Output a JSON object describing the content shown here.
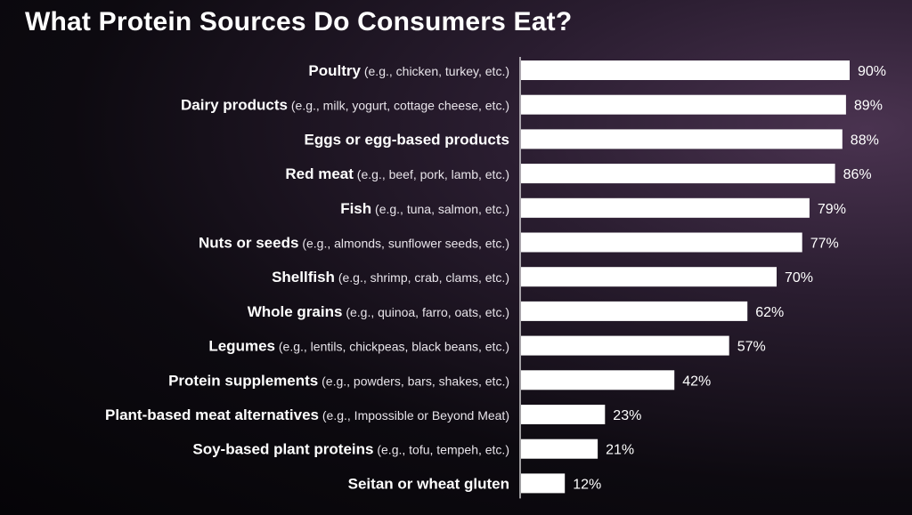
{
  "title": "What Protein Sources Do Consumers Eat?",
  "colors": {
    "bar": "#ffffff",
    "axis": "#ffffff",
    "text": "#ffffff"
  },
  "chart_data": {
    "type": "bar",
    "orientation": "horizontal",
    "title": "What Protein Sources Do Consumers Eat?",
    "categories": [
      {
        "name": "Poultry",
        "examples": "(e.g., chicken, turkey, etc.)"
      },
      {
        "name": "Dairy products",
        "examples": "(e.g., milk, yogurt, cottage cheese, etc.)"
      },
      {
        "name": "Eggs or egg-based products",
        "examples": ""
      },
      {
        "name": "Red meat",
        "examples": "(e.g., beef, pork, lamb, etc.)"
      },
      {
        "name": "Fish",
        "examples": "(e.g., tuna, salmon, etc.)"
      },
      {
        "name": "Nuts or seeds",
        "examples": "(e.g., almonds, sunflower seeds, etc.)"
      },
      {
        "name": "Shellfish",
        "examples": "(e.g., shrimp, crab, clams, etc.)"
      },
      {
        "name": "Whole grains",
        "examples": "(e.g., quinoa, farro, oats, etc.)"
      },
      {
        "name": "Legumes",
        "examples": "(e.g., lentils, chickpeas, black beans, etc.)"
      },
      {
        "name": "Protein supplements",
        "examples": "(e.g., powders, bars, shakes, etc.)"
      },
      {
        "name": "Plant-based meat alternatives",
        "examples": "(e.g., Impossible or Beyond Meat)"
      },
      {
        "name": "Soy-based plant proteins",
        "examples": "(e.g., tofu, tempeh, etc.)"
      },
      {
        "name": "Seitan or wheat gluten",
        "examples": ""
      }
    ],
    "values": [
      90,
      89,
      88,
      86,
      79,
      77,
      70,
      62,
      57,
      42,
      23,
      21,
      12
    ],
    "value_labels": [
      "90%",
      "89%",
      "88%",
      "86%",
      "79%",
      "77%",
      "70%",
      "62%",
      "57%",
      "42%",
      "23%",
      "21%",
      "12%"
    ],
    "unit": "%",
    "xlim": [
      0,
      90
    ],
    "grid": false,
    "legend": "none"
  }
}
